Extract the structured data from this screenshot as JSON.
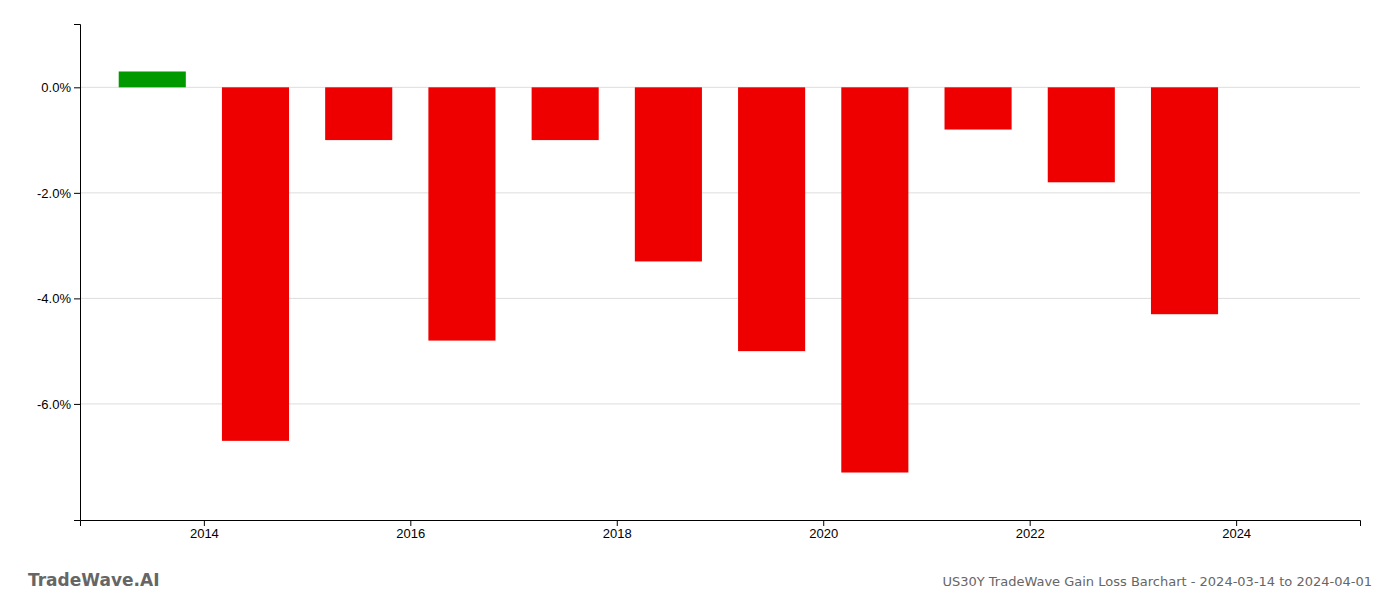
{
  "chart_data": {
    "type": "bar",
    "title": "US30Y TradeWave Gain Loss Barchart - 2024-03-14 to 2024-04-01",
    "annotations": [
      "TradeWave.AI"
    ],
    "x": [
      2013.5,
      2014.5,
      2015.5,
      2016.5,
      2017.5,
      2018.5,
      2019.5,
      2020.5,
      2021.5,
      2022.5,
      2023.5
    ],
    "values": [
      0.003,
      -0.067,
      -0.01,
      -0.048,
      -0.01,
      -0.033,
      -0.05,
      -0.073,
      -0.008,
      -0.018,
      -0.043
    ],
    "colors": [
      "#009900",
      "#ee0000",
      "#ee0000",
      "#ee0000",
      "#ee0000",
      "#ee0000",
      "#ee0000",
      "#ee0000",
      "#ee0000",
      "#ee0000",
      "#ee0000"
    ],
    "xlim": [
      2012.8,
      2025.2
    ],
    "xticks": [
      2014,
      2016,
      2018,
      2020,
      2022,
      2024
    ],
    "ylim": [
      -0.082,
      0.012
    ],
    "yticks": [
      {
        "value": 0.0,
        "label": "0.0%"
      },
      {
        "value": -0.02,
        "label": "-2.0%"
      },
      {
        "value": -0.04,
        "label": "-4.0%"
      },
      {
        "value": -0.06,
        "label": "-6.0%"
      }
    ],
    "grid": true
  }
}
